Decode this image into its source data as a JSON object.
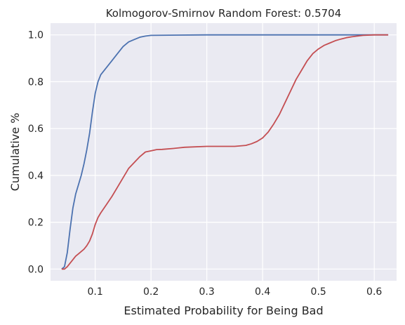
{
  "chart_data": {
    "type": "line",
    "title": "Kolmogorov-Smirnov Random Forest:  0.5704",
    "xlabel": "Estimated Probability for Being Bad",
    "ylabel": "Cumulative %",
    "xlim": [
      0.02,
      0.64
    ],
    "ylim": [
      -0.05,
      1.05
    ],
    "x_ticks": [
      0.1,
      0.2,
      0.3,
      0.4,
      0.5,
      0.6
    ],
    "x_tick_labels": [
      "0.1",
      "0.2",
      "0.3",
      "0.4",
      "0.5",
      "0.6"
    ],
    "y_ticks": [
      0.0,
      0.2,
      0.4,
      0.6,
      0.8,
      1.0
    ],
    "y_tick_labels": [
      "0.0",
      "0.2",
      "0.4",
      "0.6",
      "0.8",
      "1.0"
    ],
    "grid": true,
    "background_color": "#eaeaf2",
    "series": [
      {
        "color": "#4c72b0",
        "points": [
          [
            0.04,
            0.0
          ],
          [
            0.045,
            0.01
          ],
          [
            0.05,
            0.07
          ],
          [
            0.055,
            0.17
          ],
          [
            0.06,
            0.26
          ],
          [
            0.065,
            0.32
          ],
          [
            0.07,
            0.36
          ],
          [
            0.075,
            0.4
          ],
          [
            0.08,
            0.45
          ],
          [
            0.085,
            0.51
          ],
          [
            0.09,
            0.58
          ],
          [
            0.095,
            0.67
          ],
          [
            0.1,
            0.75
          ],
          [
            0.105,
            0.8
          ],
          [
            0.11,
            0.83
          ],
          [
            0.12,
            0.86
          ],
          [
            0.13,
            0.89
          ],
          [
            0.14,
            0.92
          ],
          [
            0.15,
            0.95
          ],
          [
            0.16,
            0.97
          ],
          [
            0.17,
            0.98
          ],
          [
            0.18,
            0.99
          ],
          [
            0.19,
            0.995
          ],
          [
            0.2,
            0.998
          ],
          [
            0.25,
            0.999
          ],
          [
            0.3,
            1.0
          ],
          [
            0.4,
            1.0
          ],
          [
            0.5,
            1.0
          ],
          [
            0.6,
            1.0
          ],
          [
            0.625,
            1.0
          ]
        ]
      },
      {
        "color": "#c44e52",
        "points": [
          [
            0.04,
            0.0
          ],
          [
            0.045,
            0.0
          ],
          [
            0.05,
            0.01
          ],
          [
            0.055,
            0.025
          ],
          [
            0.06,
            0.04
          ],
          [
            0.065,
            0.055
          ],
          [
            0.07,
            0.065
          ],
          [
            0.08,
            0.085
          ],
          [
            0.085,
            0.1
          ],
          [
            0.09,
            0.12
          ],
          [
            0.095,
            0.15
          ],
          [
            0.1,
            0.19
          ],
          [
            0.105,
            0.22
          ],
          [
            0.11,
            0.24
          ],
          [
            0.12,
            0.275
          ],
          [
            0.13,
            0.31
          ],
          [
            0.14,
            0.35
          ],
          [
            0.15,
            0.39
          ],
          [
            0.155,
            0.41
          ],
          [
            0.16,
            0.43
          ],
          [
            0.17,
            0.455
          ],
          [
            0.18,
            0.48
          ],
          [
            0.19,
            0.5
          ],
          [
            0.2,
            0.505
          ],
          [
            0.21,
            0.51
          ],
          [
            0.22,
            0.511
          ],
          [
            0.24,
            0.515
          ],
          [
            0.26,
            0.52
          ],
          [
            0.3,
            0.524
          ],
          [
            0.35,
            0.524
          ],
          [
            0.37,
            0.528
          ],
          [
            0.38,
            0.535
          ],
          [
            0.39,
            0.545
          ],
          [
            0.4,
            0.56
          ],
          [
            0.41,
            0.585
          ],
          [
            0.42,
            0.62
          ],
          [
            0.43,
            0.66
          ],
          [
            0.44,
            0.71
          ],
          [
            0.45,
            0.76
          ],
          [
            0.46,
            0.81
          ],
          [
            0.47,
            0.85
          ],
          [
            0.48,
            0.89
          ],
          [
            0.49,
            0.92
          ],
          [
            0.5,
            0.94
          ],
          [
            0.51,
            0.955
          ],
          [
            0.52,
            0.965
          ],
          [
            0.53,
            0.975
          ],
          [
            0.54,
            0.982
          ],
          [
            0.55,
            0.988
          ],
          [
            0.56,
            0.992
          ],
          [
            0.57,
            0.995
          ],
          [
            0.58,
            0.998
          ],
          [
            0.6,
            1.0
          ],
          [
            0.625,
            1.0
          ]
        ]
      }
    ]
  }
}
